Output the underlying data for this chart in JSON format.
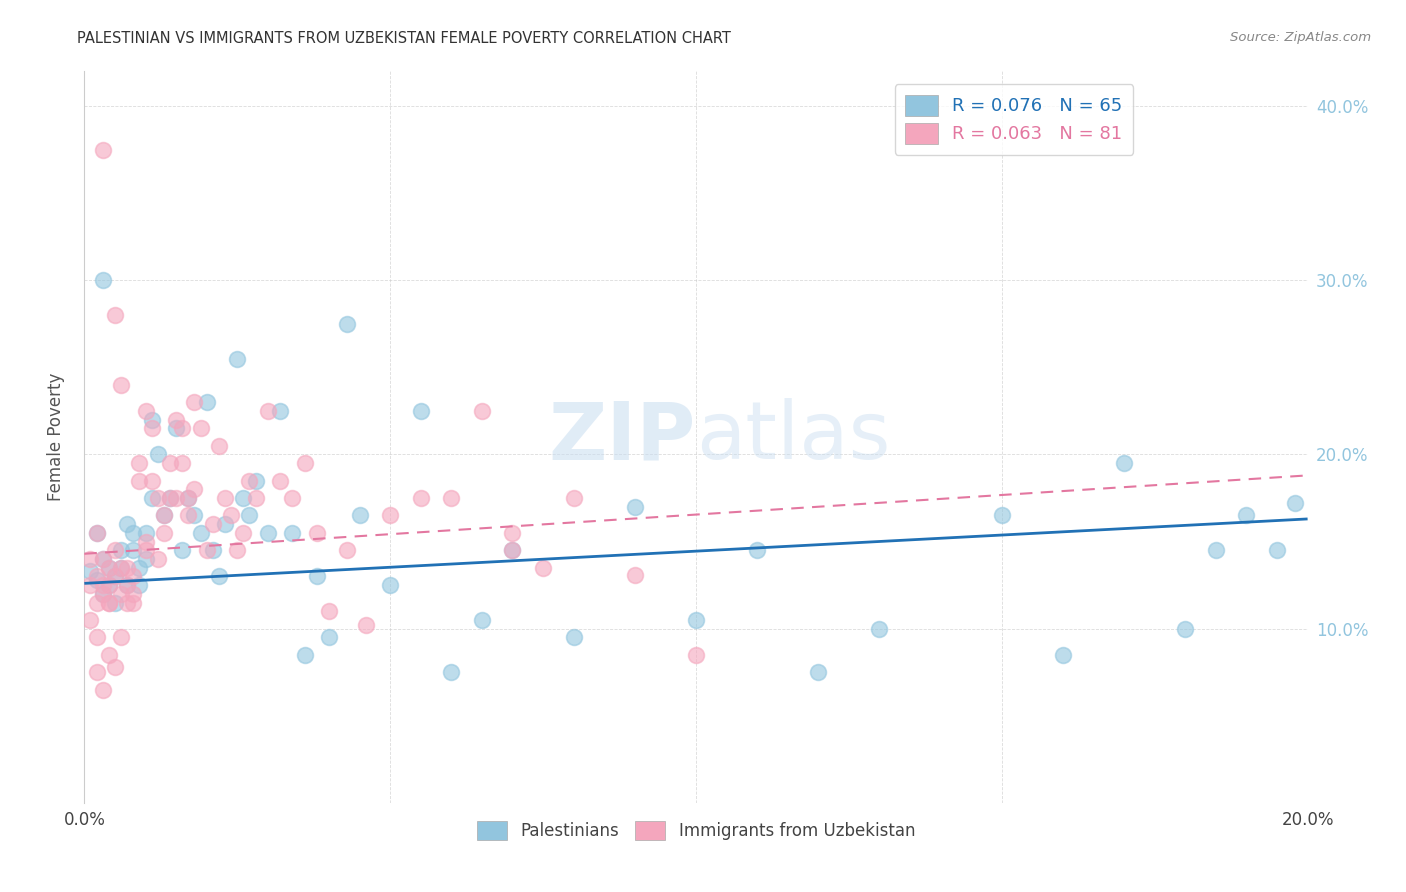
{
  "title": "PALESTINIAN VS IMMIGRANTS FROM UZBEKISTAN FEMALE POVERTY CORRELATION CHART",
  "source": "Source: ZipAtlas.com",
  "ylabel": "Female Poverty",
  "xlim": [
    0.0,
    0.2
  ],
  "ylim": [
    0.0,
    0.42
  ],
  "xticks": [
    0.0,
    0.05,
    0.1,
    0.15,
    0.2
  ],
  "yticks": [
    0.0,
    0.1,
    0.2,
    0.3,
    0.4
  ],
  "legend_r1": "R = 0.076   N = 65",
  "legend_r2": "R = 0.063   N = 81",
  "series1_name": "Palestinians",
  "series1_color": "#92c5de",
  "series2_name": "Immigrants from Uzbekistan",
  "series2_color": "#f4a6bd",
  "watermark_zip": "ZIP",
  "watermark_atlas": "atlas",
  "trendline1_x": [
    0.0,
    0.2
  ],
  "trendline1_y": [
    0.126,
    0.163
  ],
  "trendline2_x": [
    0.0,
    0.2
  ],
  "trendline2_y": [
    0.143,
    0.188
  ],
  "palestinians_x": [
    0.001,
    0.002,
    0.002,
    0.003,
    0.003,
    0.004,
    0.004,
    0.005,
    0.005,
    0.006,
    0.006,
    0.007,
    0.007,
    0.008,
    0.008,
    0.009,
    0.009,
    0.01,
    0.01,
    0.011,
    0.011,
    0.012,
    0.013,
    0.014,
    0.015,
    0.016,
    0.017,
    0.018,
    0.019,
    0.02,
    0.021,
    0.022,
    0.023,
    0.025,
    0.026,
    0.027,
    0.028,
    0.03,
    0.032,
    0.034,
    0.036,
    0.038,
    0.04,
    0.043,
    0.045,
    0.05,
    0.055,
    0.06,
    0.065,
    0.07,
    0.08,
    0.09,
    0.1,
    0.11,
    0.12,
    0.13,
    0.15,
    0.16,
    0.17,
    0.18,
    0.185,
    0.19,
    0.195,
    0.198,
    0.003
  ],
  "palestinians_y": [
    0.133,
    0.128,
    0.155,
    0.14,
    0.12,
    0.135,
    0.125,
    0.13,
    0.115,
    0.145,
    0.135,
    0.16,
    0.125,
    0.155,
    0.145,
    0.135,
    0.125,
    0.155,
    0.14,
    0.22,
    0.175,
    0.2,
    0.165,
    0.175,
    0.215,
    0.145,
    0.175,
    0.165,
    0.155,
    0.23,
    0.145,
    0.13,
    0.16,
    0.255,
    0.175,
    0.165,
    0.185,
    0.155,
    0.225,
    0.155,
    0.085,
    0.13,
    0.095,
    0.275,
    0.165,
    0.125,
    0.225,
    0.075,
    0.105,
    0.145,
    0.095,
    0.17,
    0.105,
    0.145,
    0.075,
    0.1,
    0.165,
    0.085,
    0.195,
    0.1,
    0.145,
    0.165,
    0.145,
    0.172,
    0.3
  ],
  "uzbekistan_x": [
    0.001,
    0.001,
    0.002,
    0.002,
    0.002,
    0.003,
    0.003,
    0.003,
    0.004,
    0.004,
    0.004,
    0.005,
    0.005,
    0.005,
    0.006,
    0.006,
    0.006,
    0.007,
    0.007,
    0.007,
    0.008,
    0.008,
    0.008,
    0.009,
    0.009,
    0.01,
    0.01,
    0.01,
    0.011,
    0.011,
    0.012,
    0.012,
    0.013,
    0.013,
    0.014,
    0.014,
    0.015,
    0.015,
    0.016,
    0.016,
    0.017,
    0.017,
    0.018,
    0.018,
    0.019,
    0.02,
    0.021,
    0.022,
    0.023,
    0.024,
    0.025,
    0.026,
    0.027,
    0.028,
    0.03,
    0.032,
    0.034,
    0.036,
    0.038,
    0.04,
    0.043,
    0.046,
    0.05,
    0.055,
    0.06,
    0.065,
    0.07,
    0.075,
    0.08,
    0.09,
    0.1,
    0.001,
    0.002,
    0.003,
    0.004,
    0.006,
    0.003,
    0.002,
    0.004,
    0.005,
    0.07
  ],
  "uzbekistan_y": [
    0.14,
    0.125,
    0.155,
    0.13,
    0.115,
    0.375,
    0.14,
    0.12,
    0.135,
    0.115,
    0.125,
    0.28,
    0.145,
    0.13,
    0.24,
    0.135,
    0.12,
    0.135,
    0.115,
    0.125,
    0.13,
    0.12,
    0.115,
    0.185,
    0.195,
    0.225,
    0.15,
    0.145,
    0.215,
    0.185,
    0.14,
    0.175,
    0.165,
    0.155,
    0.195,
    0.175,
    0.22,
    0.175,
    0.215,
    0.195,
    0.175,
    0.165,
    0.18,
    0.23,
    0.215,
    0.145,
    0.16,
    0.205,
    0.175,
    0.165,
    0.145,
    0.155,
    0.185,
    0.175,
    0.225,
    0.185,
    0.175,
    0.195,
    0.155,
    0.11,
    0.145,
    0.102,
    0.165,
    0.175,
    0.175,
    0.225,
    0.145,
    0.135,
    0.175,
    0.131,
    0.085,
    0.105,
    0.095,
    0.125,
    0.115,
    0.095,
    0.065,
    0.075,
    0.085,
    0.078,
    0.155
  ],
  "background_color": "#ffffff",
  "grid_color": "#cccccc",
  "title_color": "#333333",
  "tick_color": "#444444",
  "right_tick_color": "#92c5de"
}
